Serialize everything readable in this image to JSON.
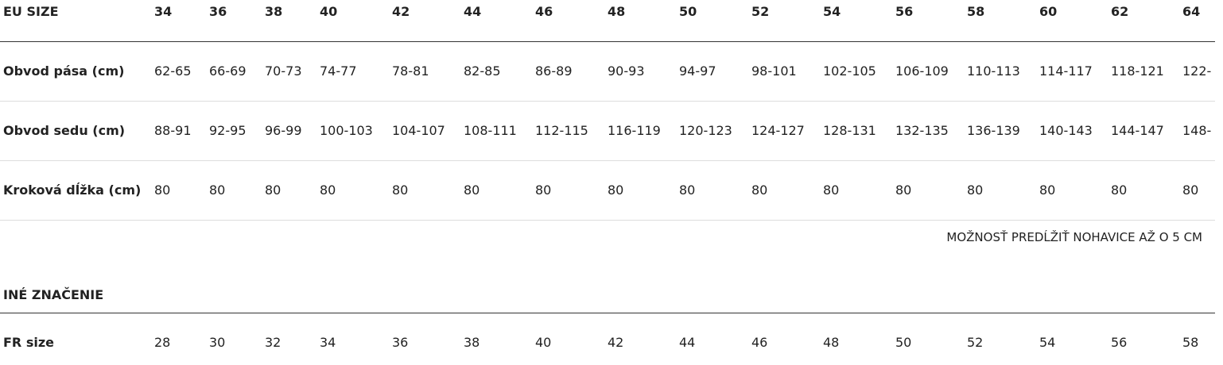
{
  "table": {
    "header": [
      "EU SIZE",
      "34",
      "36",
      "38",
      "40",
      "42",
      "44",
      "46",
      "48",
      "50",
      "52",
      "54",
      "56",
      "58",
      "60",
      "62",
      "64"
    ],
    "rows": [
      [
        "Obvod pása (cm)",
        "62-65",
        "66-69",
        "70-73",
        "74-77",
        "78-81",
        "82-85",
        "86-89",
        "90-93",
        "94-97",
        "98-101",
        "102-105",
        "106-109",
        "110-113",
        "114-117",
        "118-121",
        "122-"
      ],
      [
        "Obvod sedu (cm)",
        "88-91",
        "92-95",
        "96-99",
        "100-103",
        "104-107",
        "108-111",
        "112-115",
        "116-119",
        "120-123",
        "124-127",
        "128-131",
        "132-135",
        "136-139",
        "140-143",
        "144-147",
        "148-"
      ],
      [
        "Kroková dĺžka (cm)",
        "80",
        "80",
        "80",
        "80",
        "80",
        "80",
        "80",
        "80",
        "80",
        "80",
        "80",
        "80",
        "80",
        "80",
        "80",
        "80"
      ]
    ]
  },
  "note": "MOŽNOSŤ PREDĹŽIŤ NOHAVICE AŽ O 5 CM",
  "other": {
    "title": "INÉ ZNAČENIE",
    "rows": [
      [
        "FR size",
        "28",
        "30",
        "32",
        "34",
        "36",
        "38",
        "40",
        "42",
        "44",
        "46",
        "48",
        "50",
        "52",
        "54",
        "56",
        "58"
      ]
    ]
  }
}
